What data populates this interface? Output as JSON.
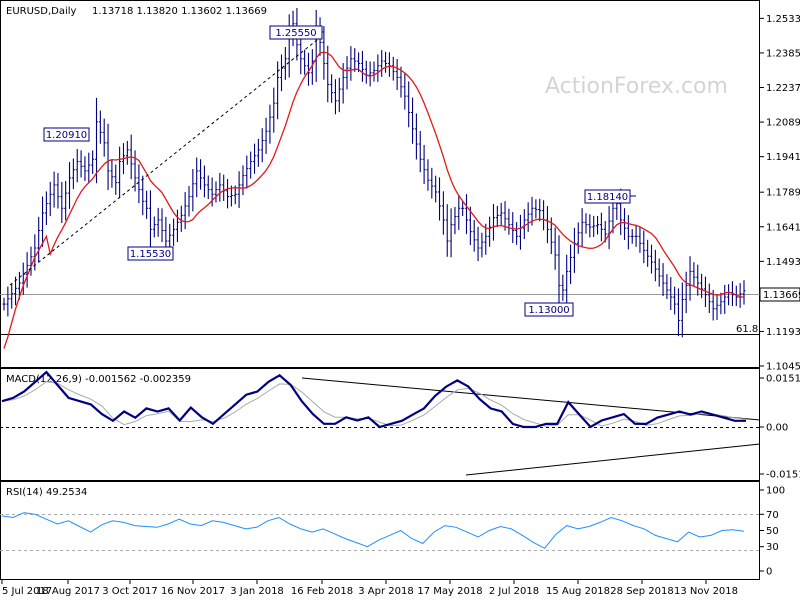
{
  "header": {
    "symbol": "EURUSD,Daily",
    "ohlc": "1.13718 1.13820 1.13602 1.13669",
    "macd_label": "MACD(12,26,9) -0.001562 -0.002359",
    "rsi_label": "RSI(14) 49.2534"
  },
  "watermark": "ActionForex.com",
  "colors": {
    "price_bar": "#000080",
    "sma": "#e31919",
    "macd": "#000080",
    "signal": "#aaaaaa",
    "rsi": "#1e90ff",
    "trendline": "#000000",
    "current_price_box": "#ffffff"
  },
  "chart_data": [
    {
      "type": "ohlc",
      "panel": "price",
      "title": "EURUSD,Daily",
      "ylim": [
        1.1045,
        1.2603
      ],
      "y_ticks": [
        "1.25330",
        "1.23850",
        "1.22370",
        "1.20890",
        "1.19410",
        "1.17890",
        "1.16410",
        "1.14930",
        "1.13410",
        "1.11930",
        "1.10450"
      ],
      "x_ticks": [
        "5 Jul 2017",
        "18 Aug 2017",
        "3 Oct 2017",
        "16 Nov 2017",
        "3 Jan 2018",
        "16 Feb 2018",
        "3 Apr 2018",
        "17 May 2018",
        "2 Jul 2018",
        "15 Aug 2018",
        "28 Sep 2018",
        "13 Nov 2018"
      ],
      "current_price": "1.13669",
      "annotations": [
        "1.25550",
        "1.20910",
        "1.15530",
        "1.13000",
        "1.18140",
        "61.8"
      ],
      "price_path": [
        [
          0,
          1.131
        ],
        [
          4,
          1.14
        ],
        [
          8,
          1.155
        ],
        [
          10,
          1.17
        ],
        [
          13,
          1.182
        ],
        [
          15,
          1.172
        ],
        [
          17,
          1.185
        ],
        [
          19,
          1.192
        ],
        [
          21,
          1.188
        ],
        [
          23,
          1.193
        ],
        [
          24,
          1.209
        ],
        [
          26,
          1.2
        ],
        [
          27,
          1.188
        ],
        [
          29,
          1.183
        ],
        [
          30,
          1.192
        ],
        [
          32,
          1.197
        ],
        [
          34,
          1.185
        ],
        [
          36,
          1.175
        ],
        [
          37,
          1.172
        ],
        [
          38,
          1.163
        ],
        [
          40,
          1.167
        ],
        [
          42,
          1.158
        ],
        [
          44,
          1.163
        ],
        [
          46,
          1.169
        ],
        [
          48,
          1.177
        ],
        [
          50,
          1.188
        ],
        [
          52,
          1.182
        ],
        [
          54,
          1.178
        ],
        [
          56,
          1.182
        ],
        [
          58,
          1.177
        ],
        [
          60,
          1.178
        ],
        [
          62,
          1.186
        ],
        [
          64,
          1.192
        ],
        [
          66,
          1.197
        ],
        [
          68,
          1.205
        ],
        [
          70,
          1.217
        ],
        [
          71,
          1.228
        ],
        [
          73,
          1.236
        ],
        [
          74,
          1.247
        ],
        [
          75,
          1.251
        ],
        [
          76,
          1.242
        ],
        [
          77,
          1.236
        ],
        [
          79,
          1.23
        ],
        [
          80,
          1.235
        ],
        [
          81,
          1.248
        ],
        [
          82,
          1.243
        ],
        [
          84,
          1.225
        ],
        [
          86,
          1.218
        ],
        [
          88,
          1.228
        ],
        [
          90,
          1.236
        ],
        [
          92,
          1.234
        ],
        [
          94,
          1.229
        ],
        [
          96,
          1.231
        ],
        [
          98,
          1.235
        ],
        [
          100,
          1.233
        ],
        [
          102,
          1.228
        ],
        [
          104,
          1.22
        ],
        [
          106,
          1.206
        ],
        [
          108,
          1.193
        ],
        [
          110,
          1.184
        ],
        [
          112,
          1.179
        ],
        [
          114,
          1.167
        ],
        [
          115,
          1.158
        ],
        [
          116,
          1.165
        ],
        [
          118,
          1.172
        ],
        [
          119,
          1.172
        ],
        [
          121,
          1.162
        ],
        [
          123,
          1.155
        ],
        [
          125,
          1.16
        ],
        [
          127,
          1.168
        ],
        [
          129,
          1.17
        ],
        [
          131,
          1.165
        ],
        [
          133,
          1.16
        ],
        [
          135,
          1.167
        ],
        [
          137,
          1.172
        ],
        [
          139,
          1.171
        ],
        [
          141,
          1.163
        ],
        [
          143,
          1.152
        ],
        [
          144,
          1.139
        ],
        [
          145,
          1.137
        ],
        [
          146,
          1.145
        ],
        [
          148,
          1.157
        ],
        [
          150,
          1.166
        ],
        [
          152,
          1.164
        ],
        [
          154,
          1.165
        ],
        [
          156,
          1.161
        ],
        [
          158,
          1.172
        ],
        [
          159,
          1.174
        ],
        [
          160,
          1.167
        ],
        [
          162,
          1.16
        ],
        [
          164,
          1.16
        ],
        [
          166,
          1.154
        ],
        [
          168,
          1.149
        ],
        [
          170,
          1.143
        ],
        [
          172,
          1.137
        ],
        [
          174,
          1.131
        ],
        [
          175,
          1.124
        ],
        [
          176,
          1.133
        ],
        [
          178,
          1.145
        ],
        [
          180,
          1.14
        ],
        [
          182,
          1.135
        ],
        [
          184,
          1.129
        ],
        [
          186,
          1.132
        ],
        [
          188,
          1.136
        ],
        [
          190,
          1.134
        ],
        [
          192,
          1.1367
        ]
      ]
    },
    {
      "type": "line",
      "panel": "macd",
      "title": "MACD(12,26,9) -0.001562 -0.002359",
      "y_ticks": [
        "0.015178",
        "0.00",
        "-0.015126"
      ],
      "series": [
        {
          "name": "MACD(12,26,9)",
          "values": [
            0.008,
            0.009,
            0.011,
            0.014,
            0.017,
            0.013,
            0.009,
            0.008,
            0.007,
            0.004,
            -0.002,
            -0.005,
            -0.003,
            -0.006,
            -0.005,
            -0.006,
            0.002,
            0.006,
            0.003,
            0.001,
            0.004,
            0.007,
            0.01,
            0.011,
            0.014,
            0.016,
            0.013,
            0.008,
            0.004,
            0.001,
            0.001,
            0.003,
            0.002,
            0.003,
            0.0,
            -0.001,
            -0.002,
            -0.004,
            -0.006,
            -0.01,
            -0.013,
            -0.015,
            -0.013,
            -0.009,
            -0.006,
            -0.005,
            -0.001,
            0.0,
            0.0,
            0.001,
            -0.001,
            -0.008,
            -0.004,
            0.0,
            0.002,
            0.003,
            0.004,
            0.001,
            -0.001,
            -0.003,
            -0.004,
            -0.005,
            -0.004,
            -0.005,
            -0.004,
            -0.003,
            -0.002,
            -0.002
          ]
        }
      ]
    },
    {
      "type": "line",
      "panel": "rsi",
      "title": "RSI(14) 49.2534",
      "y_ticks": [
        "100",
        "70",
        "50",
        "30",
        "0"
      ],
      "series": [
        {
          "name": "RSI(14)",
          "values": [
            68,
            66,
            72,
            70,
            64,
            58,
            62,
            55,
            48,
            57,
            62,
            60,
            56,
            55,
            54,
            58,
            64,
            58,
            56,
            62,
            60,
            56,
            52,
            54,
            62,
            66,
            58,
            52,
            48,
            52,
            46,
            40,
            35,
            30,
            38,
            44,
            50,
            40,
            34,
            48,
            56,
            54,
            48,
            42,
            50,
            55,
            52,
            44,
            35,
            28,
            45,
            56,
            52,
            55,
            60,
            66,
            62,
            56,
            52,
            44,
            40,
            36,
            48,
            42,
            44,
            50,
            51,
            49
          ]
        }
      ]
    }
  ]
}
